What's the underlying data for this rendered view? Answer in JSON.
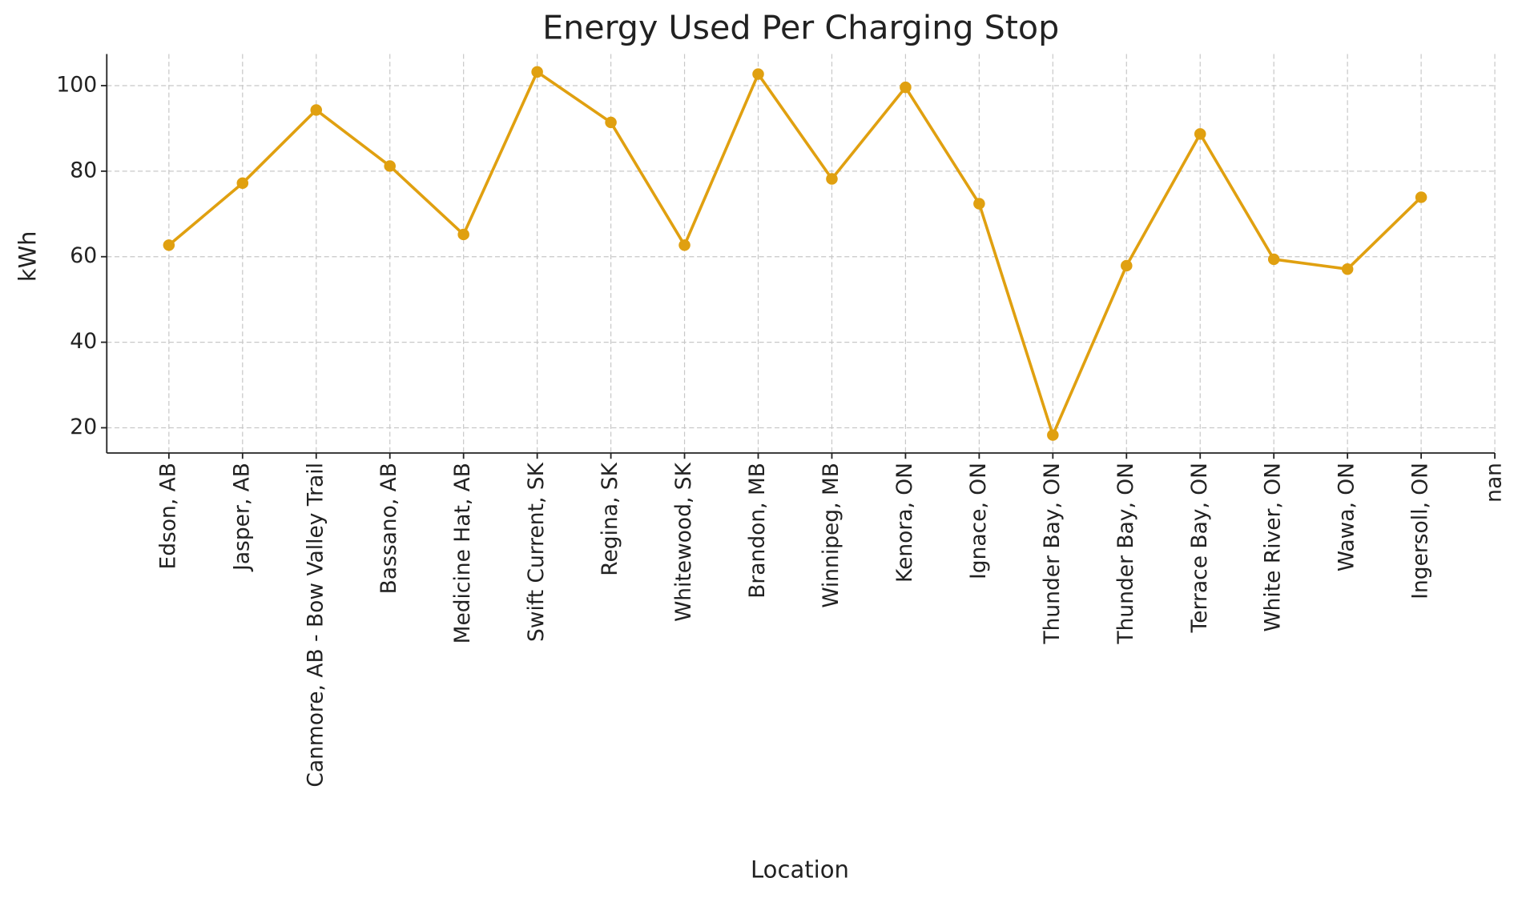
{
  "chart_data": {
    "type": "line",
    "title": "Energy Used Per Charging Stop",
    "x_label": "Location",
    "y_label": "kWh",
    "categories": [
      "Edson, AB",
      "Jasper, AB",
      "Canmore, AB - Bow Valley Trail",
      "Bassano, AB",
      "Medicine Hat, AB",
      "Swift Current, SK",
      "Regina, SK",
      "Whitewood, SK",
      "Brandon, MB",
      "Winnipeg, MB",
      "Kenora, ON",
      "Ignace, ON",
      "Thunder Bay, ON",
      "Thunder Bay, ON",
      "Terrace Bay, ON",
      "White River, ON",
      "Wawa, ON",
      "Ingersoll, ON",
      "nan"
    ],
    "series": [
      {
        "name": "kWh",
        "color": "#e0a010",
        "values": [
          62.7,
          77.2,
          94.3,
          81.2,
          65.2,
          103.2,
          91.4,
          62.7,
          102.7,
          78.2,
          99.6,
          72.4,
          18.3,
          57.9,
          88.7,
          59.4,
          57.1,
          73.9,
          null
        ]
      }
    ],
    "ylim": [
      14.1,
      107.4
    ],
    "yticks": [
      20,
      40,
      60,
      80,
      100
    ],
    "grid": true
  }
}
